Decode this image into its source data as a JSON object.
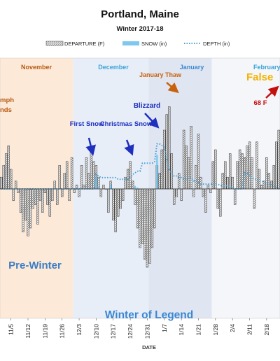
{
  "chart_data": {
    "type": "bar",
    "title": "Portland, Maine",
    "subtitle": "Winter 2017-18",
    "xlabel": "DATE",
    "ylabel": "",
    "x_start": "2017-11-01",
    "x_end": "2018-02-23",
    "ylim": [
      -24,
      24
    ],
    "legend": [
      "DEPARTURE (F)",
      "SNOW (in)",
      "DEPTH (in)"
    ],
    "legend_position": "top",
    "grid": false,
    "x_ticks": [
      "11/5",
      "11/12",
      "11/19",
      "11/26",
      "12/3",
      "12/10",
      "12/17",
      "12/24",
      "12/31",
      "1/7",
      "1/14",
      "1/21",
      "1/28",
      "2/4",
      "2/11",
      "2/18"
    ],
    "x_tick_dates": [
      "2017-11-05",
      "2017-11-12",
      "2017-11-19",
      "2017-11-26",
      "2017-12-03",
      "2017-12-10",
      "2017-12-17",
      "2017-12-24",
      "2017-12-31",
      "2018-01-07",
      "2018-01-14",
      "2018-01-21",
      "2018-01-28",
      "2018-02-04",
      "2018-02-11",
      "2018-02-18"
    ],
    "month_labels": [
      "November",
      "December",
      "January",
      "February"
    ],
    "shaded_periods": [
      {
        "label": "Pre-Winter",
        "start": "2017-11-01",
        "end": "2017-11-30"
      },
      {
        "label": "Winter of Legend",
        "start": "2017-12-01",
        "end": "2018-01-26"
      }
    ],
    "series": [
      {
        "name": "DEPARTURE (F)",
        "type": "bar",
        "values": [
          3,
          6,
          9,
          11,
          5,
          -3,
          2,
          -1,
          -6,
          -11,
          -8,
          -12,
          -10,
          -5,
          -4,
          -9,
          -3,
          -6,
          -1,
          -4,
          -7,
          -3,
          2,
          -4,
          6,
          -2,
          4,
          7,
          -3,
          8,
          -1,
          1,
          -2,
          6,
          1,
          8,
          4,
          10,
          7,
          6,
          3,
          -2,
          1,
          0,
          -6,
          2,
          -8,
          -11,
          -7,
          -5,
          -3,
          3,
          5,
          7,
          2,
          -4,
          -10,
          -15,
          -14,
          -18,
          -20,
          -19,
          -15,
          -10,
          6,
          4,
          10,
          15,
          19,
          21,
          9,
          -4,
          -2,
          4,
          -3,
          15,
          11,
          8,
          16,
          -2,
          6,
          14,
          3,
          -2,
          -6,
          1,
          -1,
          7,
          10,
          -5,
          -7,
          4,
          7,
          3,
          9,
          3,
          -4,
          7,
          10,
          9,
          8,
          11,
          12,
          8,
          -5,
          12,
          5,
          1,
          2,
          8,
          4,
          2,
          6,
          12,
          15
        ]
      },
      {
        "name": "SNOW (in)",
        "type": "bar",
        "values": [
          0,
          0,
          0,
          0,
          0,
          0,
          0,
          0,
          0,
          0,
          0,
          0,
          0,
          0,
          0,
          0,
          0,
          0,
          0,
          0,
          0,
          0,
          0,
          0,
          0,
          0,
          0,
          0,
          0,
          0,
          0,
          0,
          0,
          0,
          0,
          0,
          0,
          0,
          0,
          4.5,
          0.5,
          0,
          0,
          0,
          0,
          1.8,
          0,
          0,
          0,
          0,
          0,
          0,
          0,
          0,
          0,
          1.2,
          0.5,
          0,
          0,
          0,
          0,
          0,
          0,
          0,
          13.5,
          0,
          0,
          0,
          0,
          0,
          0,
          0,
          0,
          0,
          0,
          0,
          0,
          0,
          0,
          0,
          0,
          0,
          0,
          0,
          0,
          0,
          0,
          0,
          0,
          0,
          0,
          0,
          0,
          0,
          0,
          0,
          0,
          0,
          0,
          0,
          0,
          0,
          0,
          0,
          0,
          0,
          0,
          0,
          0,
          0,
          0,
          0,
          0,
          0,
          0
        ]
      },
      {
        "name": "DEPTH (in)",
        "type": "line",
        "values": [
          0,
          0,
          0,
          0,
          0,
          0,
          0,
          0,
          0,
          0,
          0,
          0,
          0,
          0,
          0,
          0,
          0,
          0,
          0,
          0,
          0,
          0,
          0,
          0,
          0,
          0,
          0,
          0,
          0,
          0,
          0,
          0,
          0,
          0,
          0,
          0,
          0,
          0,
          0,
          4.5,
          4,
          3.5,
          3.5,
          3.5,
          3.5,
          3.5,
          3.5,
          3.5,
          3,
          3,
          3,
          3,
          3,
          3.5,
          4.5,
          5,
          5.5,
          5.5,
          8,
          8,
          8,
          8,
          8,
          8.5,
          14,
          14,
          13.5,
          13,
          9,
          6,
          5,
          4,
          4,
          3.5,
          3.5,
          3,
          3,
          3.5,
          3.5,
          2.5,
          2.5,
          2,
          1.5,
          1.5,
          1.5,
          1.5,
          1.5,
          1.5,
          1.5,
          1.5,
          1,
          1,
          1,
          1,
          0.5,
          0.5,
          0,
          0,
          0,
          0,
          5,
          5,
          4,
          3.5,
          3,
          3,
          2.5,
          2.5,
          2,
          2,
          1.5,
          1.5,
          1,
          0.5,
          0
        ]
      }
    ],
    "annotations": [
      {
        "text": "First Snow",
        "date": "2017-12-09"
      },
      {
        "text": "Christmas Snow",
        "date": "2017-12-25"
      },
      {
        "text": "Blizzard",
        "date": "2018-01-04"
      },
      {
        "text": "January Thaw",
        "date": "2018-01-12"
      },
      {
        "text": "False",
        "date": "2018-02-13"
      },
      {
        "text": "68 F",
        "date": "2018-02-21"
      },
      {
        "text": "mph",
        "date": "2017-11-01"
      },
      {
        "text": "nds",
        "date": "2017-11-01"
      }
    ],
    "colors": {
      "departure": "#666666",
      "snow": "#7ec8ee",
      "depth": "#4a9fd3",
      "pre_winter_bg": "#fde9d7",
      "winter_bg": "#e7eef8",
      "jan_bg": "#dfe6f2",
      "november_label": "#b75a12",
      "winter_label": "#3b87d1",
      "pre_winter_label": "#3b7dc4",
      "annotation_blue": "#1f2fbf",
      "annotation_orange": "#c9620c",
      "false_label": "#f2b200",
      "annotation_red": "#c61010",
      "feb_label": "#3aa2d8"
    }
  }
}
